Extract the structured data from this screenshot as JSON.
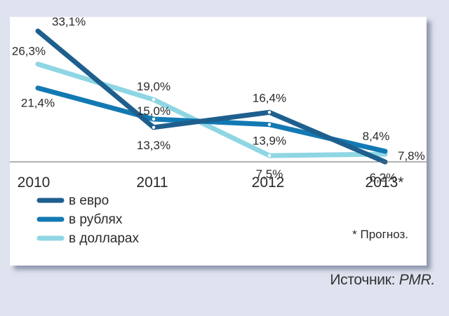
{
  "source_label": "Источник:",
  "source_name": "PMR.",
  "footnote": "* Прогноз.",
  "chart_data": {
    "type": "line",
    "categories": [
      "2010",
      "2011",
      "2012",
      "2013*"
    ],
    "series": [
      {
        "name": "в евро",
        "color": "#1e5f8e",
        "values": [
          33.1,
          13.3,
          16.4,
          6.2
        ],
        "labels": [
          "33,1%",
          "13,3%",
          "16,4%",
          "6,2%"
        ]
      },
      {
        "name": "в рублях",
        "color": "#1279b3",
        "values": [
          21.4,
          15.0,
          13.9,
          8.4
        ],
        "labels": [
          "21,4%",
          "15,0%",
          "13,9%",
          "8,4%"
        ]
      },
      {
        "name": "в долларах",
        "color": "#8fd6e4",
        "values": [
          26.3,
          19.0,
          7.5,
          7.8
        ],
        "labels": [
          "26,3%",
          "19,0%",
          "7,5%",
          "7,8%"
        ]
      }
    ],
    "grid": false,
    "legend_position": "bottom-left"
  }
}
